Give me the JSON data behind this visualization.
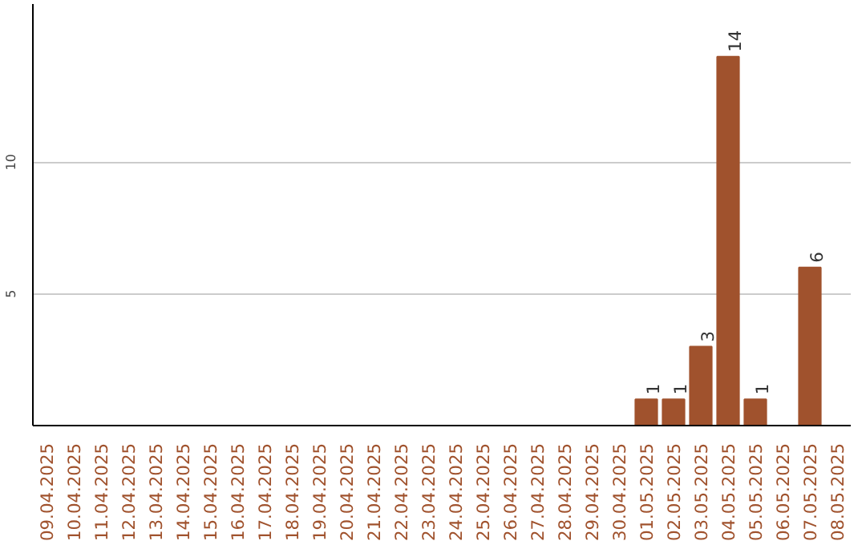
{
  "chart_data": {
    "type": "bar",
    "categories": [
      "09.04.2025",
      "10.04.2025",
      "11.04.2025",
      "12.04.2025",
      "13.04.2025",
      "14.04.2025",
      "15.04.2025",
      "16.04.2025",
      "17.04.2025",
      "18.04.2025",
      "19.04.2025",
      "20.04.2025",
      "21.04.2025",
      "22.04.2025",
      "23.04.2025",
      "24.04.2025",
      "25.04.2025",
      "26.04.2025",
      "27.04.2025",
      "28.04.2025",
      "29.04.2025",
      "30.04.2025",
      "01.05.2025",
      "02.05.2025",
      "03.05.2025",
      "04.05.2025",
      "05.05.2025",
      "06.05.2025",
      "07.05.2025",
      "08.05.2025"
    ],
    "values": [
      0,
      0,
      0,
      0,
      0,
      0,
      0,
      0,
      0,
      0,
      0,
      0,
      0,
      0,
      0,
      0,
      0,
      0,
      0,
      0,
      0,
      0,
      1,
      1,
      3,
      14,
      1,
      0,
      6,
      0
    ],
    "value_labels": [
      null,
      null,
      null,
      null,
      null,
      null,
      null,
      null,
      null,
      null,
      null,
      null,
      null,
      null,
      null,
      null,
      null,
      null,
      null,
      null,
      null,
      null,
      "1",
      "1",
      "3",
      "14",
      "1",
      null,
      "6",
      null
    ],
    "color": "#a0522d",
    "ylim": [
      0,
      16
    ],
    "yticks": [
      5,
      10
    ],
    "grid": "y"
  }
}
